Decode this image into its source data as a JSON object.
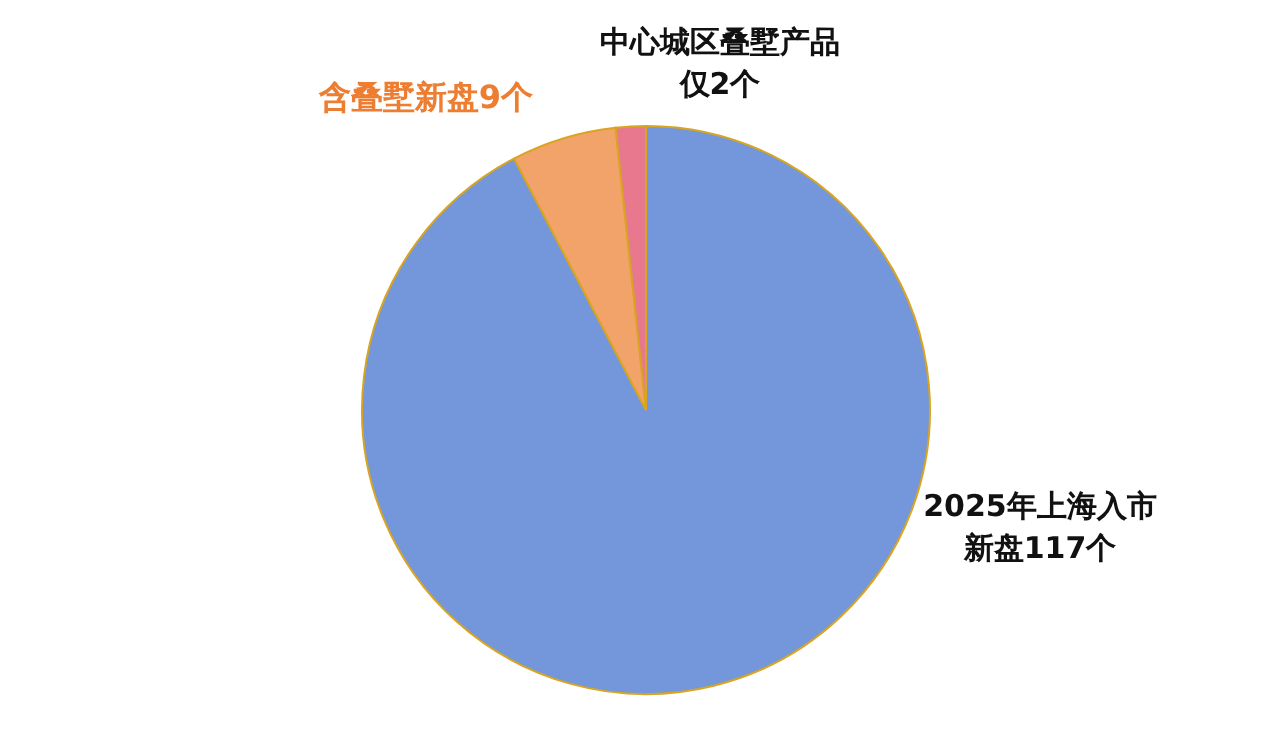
{
  "chart_data": {
    "type": "pie",
    "categories": [
      "2025年上海入市新盘117个",
      "含叠墅新盘9个",
      "中心城区叠墅产品仅2个"
    ],
    "values": [
      108,
      7,
      2
    ],
    "colors": [
      "#7397da",
      "#f2a36a",
      "#e8788e"
    ],
    "legend": false
  }
}
